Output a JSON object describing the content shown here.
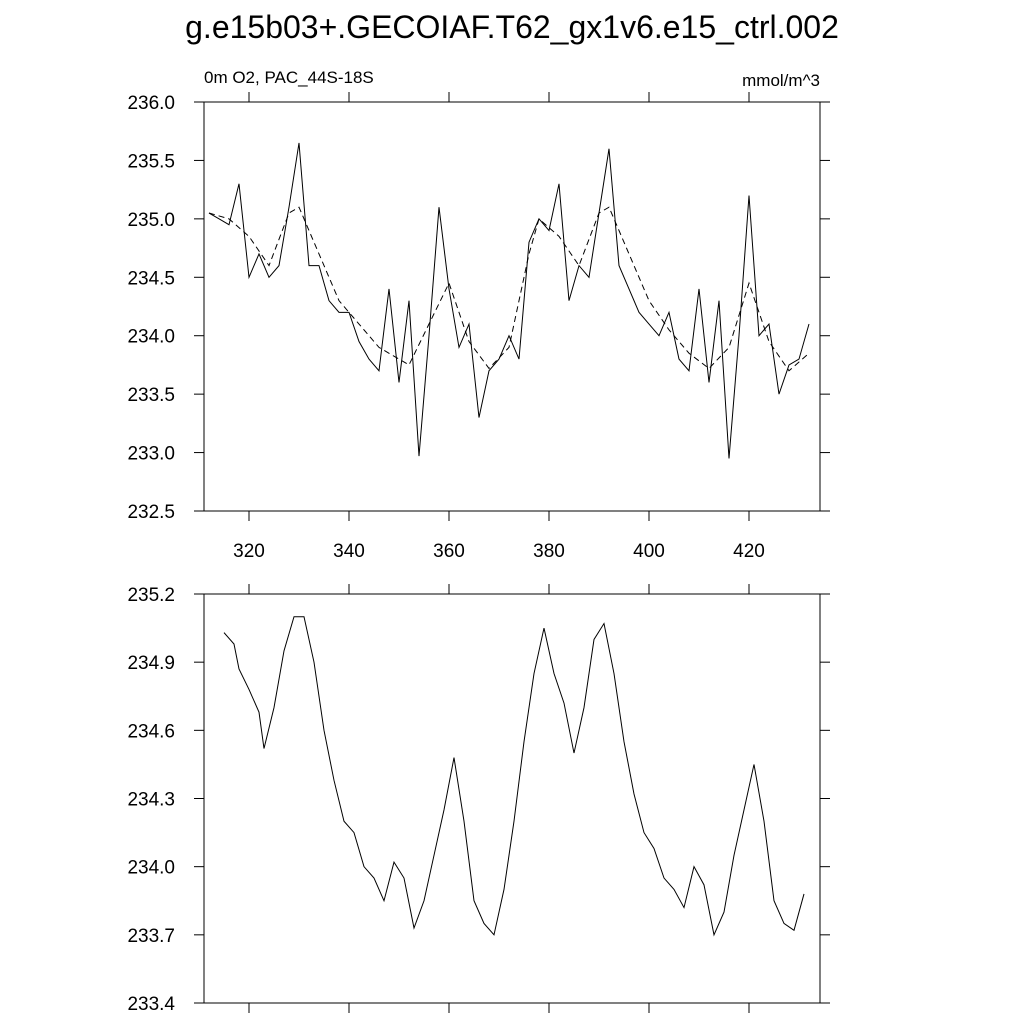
{
  "title": "g.e15b03+.GECOIAF.T62_gx1v6.e15_ctrl.002",
  "chart_data": [
    {
      "type": "line",
      "left_string": "0m O2, PAC_44S-18S",
      "right_string": "mmol/m^3",
      "xlim": [
        311,
        434.2
      ],
      "xticks": [
        320,
        340,
        360,
        380,
        400,
        420
      ],
      "ylim": [
        232.5,
        236.0
      ],
      "yticks": [
        {
          "value": 232.5,
          "label": "232.5"
        },
        {
          "value": 233.0,
          "label": "233.0"
        },
        {
          "value": 233.5,
          "label": "233.5"
        },
        {
          "value": 234.0,
          "label": "234.0"
        },
        {
          "value": 234.5,
          "label": "234.5"
        },
        {
          "value": 235.0,
          "label": "235.0"
        },
        {
          "value": 235.5,
          "label": "235.5"
        },
        {
          "value": 236.0,
          "label": "236.0"
        }
      ],
      "series": [
        {
          "color": "#000000",
          "dashed": false,
          "x": [
            312,
            314,
            316,
            318,
            320,
            322,
            324,
            326,
            328,
            330,
            332,
            334,
            336,
            338,
            340,
            342,
            344,
            346,
            348,
            350,
            352,
            354,
            356,
            358,
            360,
            362,
            364,
            366,
            368,
            370,
            372,
            374,
            376,
            378,
            380,
            382,
            384,
            386,
            388,
            390,
            392,
            394,
            396,
            398,
            400,
            402,
            404,
            406,
            408,
            410,
            412,
            414,
            416,
            418,
            420,
            422,
            424,
            426,
            428,
            430,
            432
          ],
          "values": [
            235.05,
            235.0,
            234.95,
            235.3,
            234.5,
            234.7,
            234.5,
            234.6,
            235.1,
            235.65,
            234.6,
            234.6,
            234.3,
            234.2,
            234.2,
            233.95,
            233.8,
            233.7,
            234.4,
            233.6,
            234.3,
            232.97,
            234.0,
            235.1,
            234.4,
            233.9,
            234.1,
            233.3,
            233.7,
            233.8,
            234.0,
            233.8,
            234.8,
            235.0,
            234.9,
            235.3,
            234.3,
            234.6,
            234.5,
            235.05,
            235.6,
            234.6,
            234.4,
            234.2,
            234.1,
            234.0,
            234.2,
            233.8,
            233.7,
            234.4,
            233.6,
            234.3,
            232.95,
            234.0,
            235.2,
            234.0,
            234.1,
            233.5,
            233.75,
            233.8,
            234.1
          ]
        },
        {
          "color": "#000000",
          "dashed": true,
          "x": [
            312,
            316,
            320,
            324,
            328,
            330,
            334,
            338,
            342,
            346,
            350,
            352,
            356,
            360,
            364,
            368,
            372,
            376,
            378,
            382,
            386,
            390,
            392,
            396,
            400,
            404,
            408,
            412,
            416,
            420,
            424,
            428,
            432
          ],
          "values": [
            235.05,
            235.0,
            234.85,
            234.6,
            235.05,
            235.1,
            234.7,
            234.3,
            234.1,
            233.9,
            233.8,
            233.75,
            234.1,
            234.45,
            233.95,
            233.72,
            233.9,
            234.7,
            235.0,
            234.85,
            234.6,
            235.05,
            235.1,
            234.7,
            234.3,
            234.05,
            233.85,
            233.72,
            233.9,
            234.45,
            233.95,
            233.7,
            233.85
          ]
        }
      ]
    },
    {
      "type": "line",
      "xlim": [
        311,
        434.2
      ],
      "ylim": [
        233.4,
        235.2
      ],
      "yticks": [
        {
          "value": 233.4,
          "label": "233.4"
        },
        {
          "value": 233.7,
          "label": "233.7"
        },
        {
          "value": 234.0,
          "label": "234.0"
        },
        {
          "value": 234.3,
          "label": "234.3"
        },
        {
          "value": 234.6,
          "label": "234.6"
        },
        {
          "value": 234.9,
          "label": "234.9"
        },
        {
          "value": 235.2,
          "label": "235.2"
        }
      ],
      "series": [
        {
          "color": "#000000",
          "dashed": false,
          "x": [
            315,
            317,
            318,
            320,
            322,
            323,
            325,
            327,
            329,
            331,
            333,
            335,
            337,
            339,
            341,
            343,
            345,
            347,
            349,
            351,
            353,
            355,
            357,
            359,
            361,
            363,
            365,
            367,
            369,
            371,
            373,
            375,
            377,
            379,
            381,
            383,
            385,
            387,
            389,
            391,
            393,
            395,
            397,
            399,
            401,
            403,
            405,
            407,
            409,
            411,
            413,
            415,
            417,
            419,
            421,
            423,
            425,
            427,
            429,
            431
          ],
          "values": [
            235.03,
            234.98,
            234.87,
            234.78,
            234.68,
            234.52,
            234.7,
            234.95,
            235.1,
            235.1,
            234.9,
            234.6,
            234.38,
            234.2,
            234.15,
            234.0,
            233.95,
            233.85,
            234.02,
            233.95,
            233.73,
            233.85,
            234.05,
            234.25,
            234.48,
            234.2,
            233.85,
            233.75,
            233.7,
            233.9,
            234.2,
            234.55,
            234.85,
            235.05,
            234.85,
            234.72,
            234.5,
            234.7,
            235.0,
            235.07,
            234.85,
            234.55,
            234.32,
            234.15,
            234.08,
            233.95,
            233.9,
            233.82,
            234.0,
            233.92,
            233.7,
            233.8,
            234.05,
            234.25,
            234.45,
            234.2,
            233.85,
            233.75,
            233.72,
            233.88
          ]
        }
      ]
    }
  ]
}
